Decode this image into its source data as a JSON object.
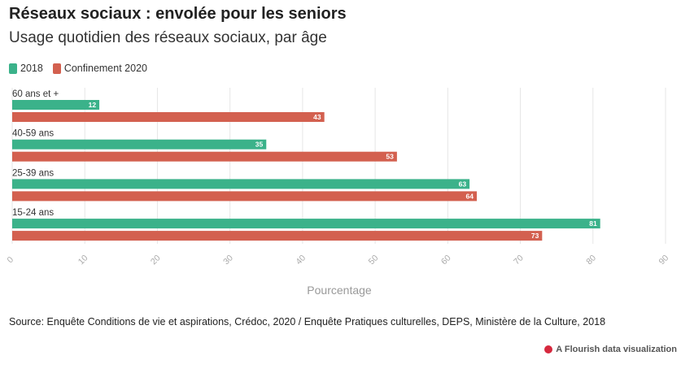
{
  "header": {
    "title": "Réseaux sociaux : envolée pour les seniors",
    "subtitle": "Usage quotidien des réseaux sociaux, par âge"
  },
  "legend": [
    {
      "label": "2018",
      "color": "#3bb28a"
    },
    {
      "label": "Confinement 2020",
      "color": "#d3604f"
    }
  ],
  "chart_data": {
    "type": "bar",
    "orientation": "horizontal",
    "categories": [
      "60 ans et +",
      "40-59 ans",
      "25-39 ans",
      "15-24 ans"
    ],
    "series": [
      {
        "name": "2018",
        "color": "#3bb28a",
        "values": [
          12,
          35,
          63,
          81
        ]
      },
      {
        "name": "Confinement 2020",
        "color": "#d3604f",
        "values": [
          43,
          53,
          64,
          73
        ]
      }
    ],
    "xlabel": "Pourcentage",
    "xlim": [
      0,
      90
    ],
    "xticks": [
      0,
      10,
      20,
      30,
      40,
      50,
      60,
      70,
      80,
      90
    ],
    "grid": true,
    "legend_position": "top-left"
  },
  "footer": {
    "source": "Source: Enquête Conditions de vie et aspirations, Crédoc, 2020 / Enquête Pratiques culturelles, DEPS, Ministère de la Culture, 2018",
    "credit": "A Flourish data visualization"
  }
}
